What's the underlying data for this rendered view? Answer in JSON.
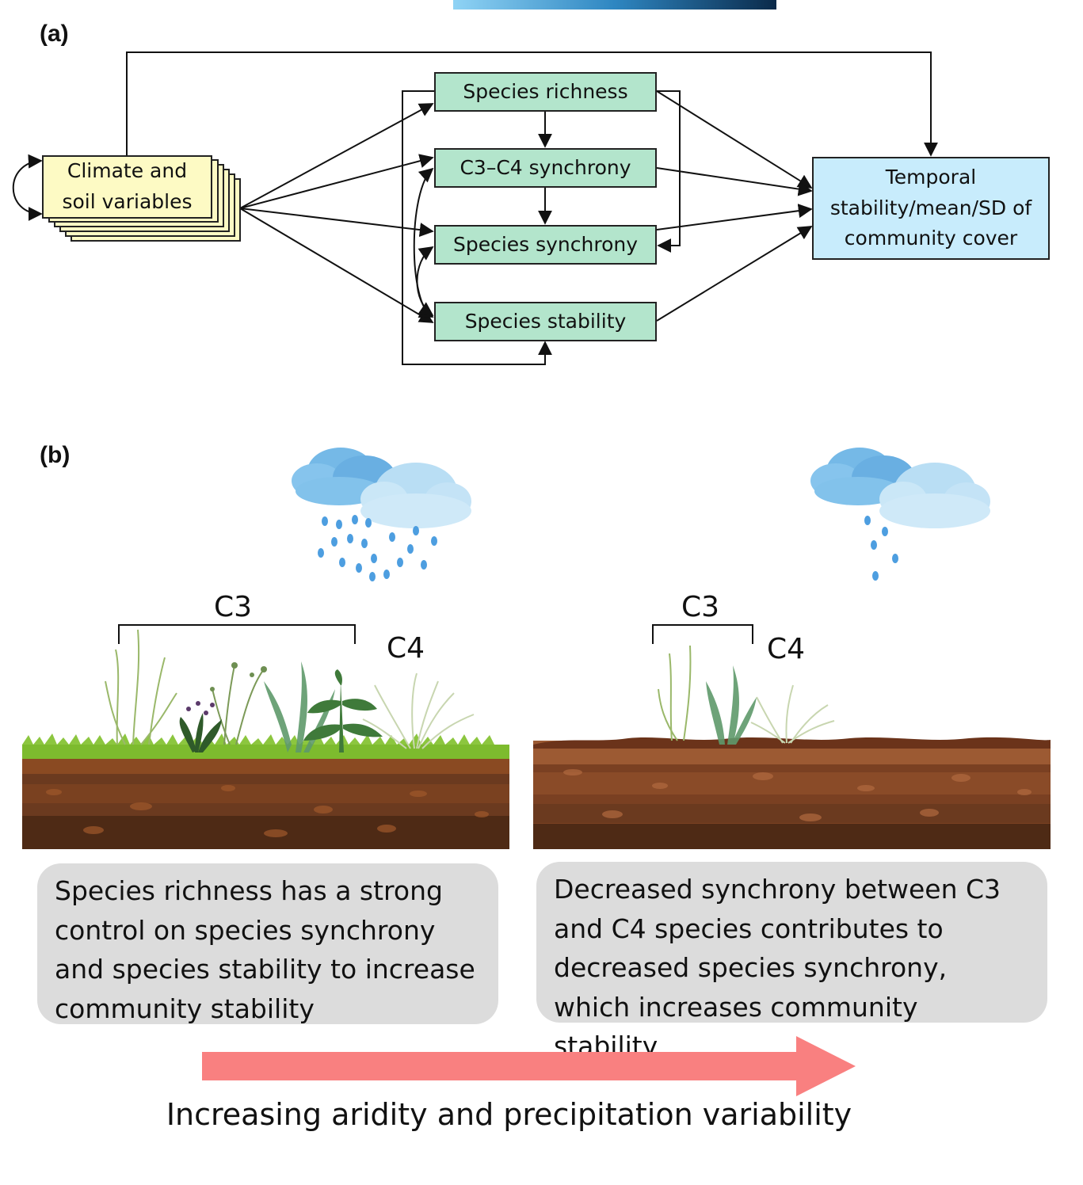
{
  "panel_a": {
    "label": "(a)",
    "nodes": {
      "climate": "Climate and soil variables",
      "richness": "Species richness",
      "c3c4": "C3–C4 synchrony",
      "synchrony": "Species synchrony",
      "stability": "Species stability",
      "outcome": "Temporal stability/mean/SD of community cover"
    }
  },
  "panel_b": {
    "label": "(b)",
    "left": {
      "c3_label": "C3",
      "c4_label": "C4",
      "caption": "Species richness has a strong control on species synchrony and species stability to increase community stability"
    },
    "right": {
      "c3_label": "C3",
      "c4_label": "C4",
      "caption": "Decreased synchrony between C3 and C4 species contributes to decreased species synchrony, which increases community stability"
    },
    "gradient_label": "Increasing aridity and precipitation variability"
  },
  "colors": {
    "green_box": "#b3e5cc",
    "yellow_box": "#fdfac4",
    "blue_box": "#c8ecfc",
    "arrow_red": "#f98080",
    "caption_bg": "#dcdcdc"
  }
}
